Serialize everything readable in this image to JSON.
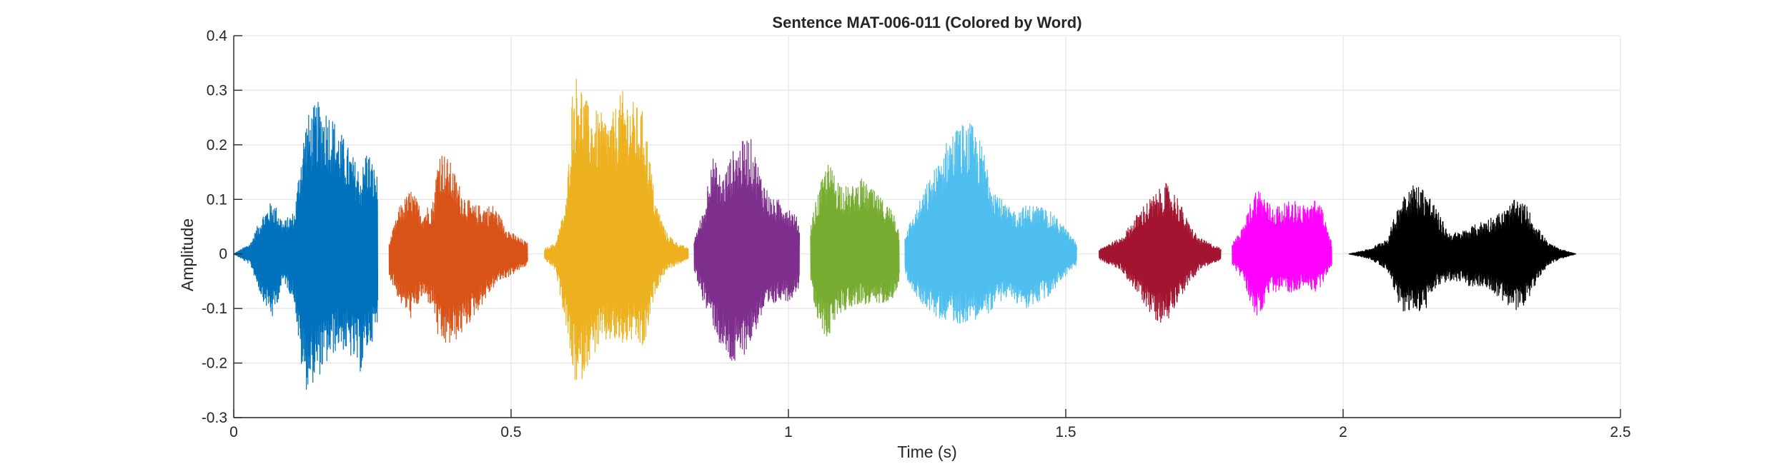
{
  "chart_data": {
    "type": "line",
    "title": "Sentence MAT-006-011 (Colored by Word)",
    "xlabel": "Time (s)",
    "ylabel": "Amplitude",
    "xlim": [
      0,
      2.5
    ],
    "ylim": [
      -0.3,
      0.4
    ],
    "xticks": [
      0,
      0.5,
      1,
      1.5,
      2,
      2.5
    ],
    "xtick_labels": [
      "0",
      "0.5",
      "1",
      "1.5",
      "2",
      "2.5"
    ],
    "yticks": [
      -0.3,
      -0.2,
      -0.1,
      0,
      0.1,
      0.2,
      0.3,
      0.4
    ],
    "ytick_labels": [
      "-0.3",
      "-0.2",
      "-0.1",
      "0",
      "0.1",
      "0.2",
      "0.3",
      "0.4"
    ],
    "grid": true,
    "series": [
      {
        "color": "#0072BD",
        "x": [
          0.0,
          0.03,
          0.05,
          0.07,
          0.09,
          0.11,
          0.12,
          0.13,
          0.15,
          0.17,
          0.19,
          0.21,
          0.23,
          0.24,
          0.26
        ],
        "upper": [
          0.0,
          0.02,
          0.07,
          0.1,
          0.06,
          0.08,
          0.18,
          0.25,
          0.28,
          0.27,
          0.23,
          0.19,
          0.15,
          0.2,
          0.14
        ],
        "lower": [
          0.0,
          -0.02,
          -0.08,
          -0.12,
          -0.05,
          -0.09,
          -0.2,
          -0.25,
          -0.23,
          -0.2,
          -0.17,
          -0.19,
          -0.22,
          -0.18,
          -0.14
        ]
      },
      {
        "color": "#D95319",
        "x": [
          0.28,
          0.3,
          0.32,
          0.34,
          0.36,
          0.37,
          0.39,
          0.41,
          0.43,
          0.45,
          0.47,
          0.48,
          0.5,
          0.53
        ],
        "upper": [
          0.02,
          0.09,
          0.12,
          0.08,
          0.1,
          0.2,
          0.17,
          0.12,
          0.09,
          0.09,
          0.09,
          0.07,
          0.04,
          0.02
        ],
        "lower": [
          -0.04,
          -0.09,
          -0.12,
          -0.08,
          -0.1,
          -0.17,
          -0.17,
          -0.15,
          -0.12,
          -0.09,
          -0.06,
          -0.05,
          -0.04,
          -0.02
        ]
      },
      {
        "color": "#EDB120",
        "x": [
          0.56,
          0.58,
          0.6,
          0.61,
          0.62,
          0.64,
          0.66,
          0.68,
          0.7,
          0.72,
          0.74,
          0.76,
          0.78,
          0.8,
          0.82
        ],
        "upper": [
          0.01,
          0.02,
          0.1,
          0.3,
          0.34,
          0.27,
          0.26,
          0.25,
          0.3,
          0.28,
          0.26,
          0.1,
          0.04,
          0.02,
          0.01
        ],
        "lower": [
          -0.01,
          -0.03,
          -0.14,
          -0.22,
          -0.25,
          -0.2,
          -0.17,
          -0.16,
          -0.17,
          -0.16,
          -0.18,
          -0.07,
          -0.03,
          -0.02,
          -0.01
        ]
      },
      {
        "color": "#7E2F8E",
        "x": [
          0.83,
          0.85,
          0.86,
          0.88,
          0.9,
          0.91,
          0.93,
          0.95,
          0.97,
          0.99,
          1.0,
          1.02
        ],
        "upper": [
          0.03,
          0.09,
          0.19,
          0.14,
          0.19,
          0.2,
          0.22,
          0.15,
          0.1,
          0.1,
          0.09,
          0.06
        ],
        "lower": [
          -0.03,
          -0.1,
          -0.12,
          -0.18,
          -0.21,
          -0.2,
          -0.17,
          -0.12,
          -0.1,
          -0.08,
          -0.09,
          -0.06
        ]
      },
      {
        "color": "#77AC30",
        "x": [
          1.04,
          1.05,
          1.07,
          1.09,
          1.11,
          1.13,
          1.15,
          1.17,
          1.19,
          1.2
        ],
        "upper": [
          0.05,
          0.1,
          0.17,
          0.14,
          0.12,
          0.14,
          0.12,
          0.1,
          0.08,
          0.04
        ],
        "lower": [
          -0.05,
          -0.12,
          -0.16,
          -0.11,
          -0.1,
          -0.09,
          -0.1,
          -0.09,
          -0.08,
          -0.05
        ]
      },
      {
        "color": "#4DBEEE",
        "x": [
          1.21,
          1.23,
          1.25,
          1.27,
          1.29,
          1.31,
          1.33,
          1.35,
          1.37,
          1.39,
          1.41,
          1.43,
          1.45,
          1.47,
          1.49,
          1.52
        ],
        "upper": [
          0.04,
          0.08,
          0.13,
          0.17,
          0.22,
          0.24,
          0.24,
          0.2,
          0.13,
          0.09,
          0.08,
          0.09,
          0.09,
          0.08,
          0.06,
          0.02
        ],
        "lower": [
          -0.04,
          -0.08,
          -0.1,
          -0.12,
          -0.12,
          -0.13,
          -0.12,
          -0.12,
          -0.1,
          -0.08,
          -0.09,
          -0.1,
          -0.09,
          -0.08,
          -0.05,
          -0.02
        ]
      },
      {
        "color": "#A2142F",
        "x": [
          1.56,
          1.58,
          1.6,
          1.62,
          1.64,
          1.66,
          1.68,
          1.7,
          1.72,
          1.74,
          1.76,
          1.78
        ],
        "upper": [
          0.01,
          0.02,
          0.03,
          0.06,
          0.09,
          0.11,
          0.13,
          0.11,
          0.06,
          0.03,
          0.02,
          0.01
        ],
        "lower": [
          -0.01,
          -0.02,
          -0.03,
          -0.06,
          -0.09,
          -0.12,
          -0.13,
          -0.09,
          -0.06,
          -0.03,
          -0.02,
          -0.01
        ]
      },
      {
        "color": "#FF00FF",
        "x": [
          1.8,
          1.82,
          1.84,
          1.85,
          1.87,
          1.89,
          1.91,
          1.93,
          1.95,
          1.96,
          1.97,
          1.98
        ],
        "upper": [
          0.02,
          0.05,
          0.12,
          0.12,
          0.09,
          0.09,
          0.1,
          0.09,
          0.1,
          0.1,
          0.05,
          0.02
        ],
        "lower": [
          -0.02,
          -0.05,
          -0.11,
          -0.12,
          -0.07,
          -0.07,
          -0.07,
          -0.06,
          -0.07,
          -0.06,
          -0.04,
          -0.02
        ]
      },
      {
        "color": "#000000",
        "x": [
          2.01,
          2.05,
          2.08,
          2.1,
          2.11,
          2.13,
          2.15,
          2.17,
          2.19,
          2.21,
          2.23,
          2.25,
          2.27,
          2.29,
          2.31,
          2.33,
          2.35,
          2.37,
          2.39,
          2.42
        ],
        "upper": [
          0.0,
          0.01,
          0.03,
          0.09,
          0.12,
          0.13,
          0.12,
          0.08,
          0.04,
          0.04,
          0.05,
          0.06,
          0.07,
          0.08,
          0.1,
          0.09,
          0.05,
          0.02,
          0.01,
          0.0
        ],
        "lower": [
          -0.0,
          -0.01,
          -0.03,
          -0.09,
          -0.11,
          -0.11,
          -0.1,
          -0.06,
          -0.05,
          -0.05,
          -0.06,
          -0.06,
          -0.07,
          -0.09,
          -0.11,
          -0.09,
          -0.05,
          -0.02,
          -0.01,
          -0.0
        ]
      }
    ]
  }
}
